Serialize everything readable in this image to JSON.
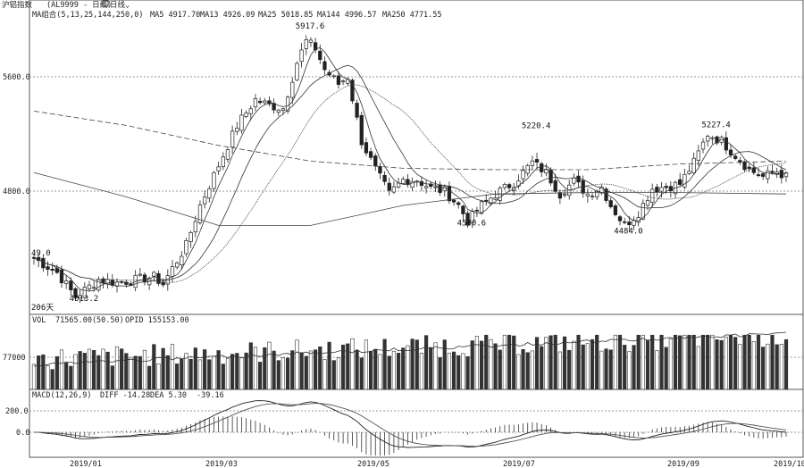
{
  "header": {
    "symbol_label": "沪铝指数",
    "code_label": "(AL9999 - 日线)",
    "period_menu": "日线",
    "ma_legend": "MA组合(5,13,25,144,250,0)",
    "ma_values": [
      "MA5 4917.70",
      "MA13 4926.09",
      "MA25 5018.85",
      "MA144 4996.57",
      "MA250 4771.55"
    ]
  },
  "volume_header": {
    "label": "VOL",
    "vol_text": "71565.00(50.50)",
    "opid_text": "OPID 155153.00"
  },
  "macd_header": {
    "label": "MACD(12,26,9)",
    "diff_text": "DIFF -14.28",
    "dea_text": "DEA 5.30",
    "macd_text": "-39.16"
  },
  "colors": {
    "up": "#222222",
    "down": "#222222",
    "grid": "#888888",
    "background": "#ffffff"
  },
  "chart_data": {
    "type": "candlestick",
    "price_axis": {
      "ticks": [
        4800.0,
        5600.0
      ],
      "tick_labels": [
        "4800.0",
        "5600.0"
      ],
      "range": [
        3760,
        6000
      ]
    },
    "volume_axis": {
      "ticks": [
        77000
      ],
      "tick_labels": [
        "77000"
      ],
      "range": [
        0,
        140000
      ]
    },
    "macd_axis": {
      "ticks": [
        200.0,
        0.0
      ],
      "tick_labels": [
        "200.0",
        "0.0"
      ],
      "range": [
        -150,
        280
      ]
    },
    "x_labels": [
      "2019/01",
      "2019/03",
      "2019/05",
      "2019/07",
      "2019/09",
      "2019/10"
    ],
    "annotations": [
      {
        "text": "5917.6",
        "price": 5917.6,
        "candle": 59
      },
      {
        "text": "5220.4",
        "price": 5220.4,
        "candle": 108
      },
      {
        "text": "5227.4",
        "price": 5227.4,
        "candle": 147
      },
      {
        "text": "4540.6",
        "price": 4540.6,
        "candle": 94
      },
      {
        "text": "4484.0",
        "price": 4484.0,
        "candle": 128
      },
      {
        "text": "4013.2",
        "price": 4013.2,
        "candle": 10
      },
      {
        "text": "49.0",
        "price": 4330,
        "candle": 0
      },
      {
        "text": "206天",
        "price": 3950,
        "candle": 0
      }
    ],
    "anchor_closes": [
      [
        0,
        4330
      ],
      [
        5,
        4230
      ],
      [
        9,
        4060
      ],
      [
        14,
        4180
      ],
      [
        18,
        4160
      ],
      [
        22,
        4180
      ],
      [
        26,
        4200
      ],
      [
        28,
        4150
      ],
      [
        30,
        4260
      ],
      [
        33,
        4420
      ],
      [
        36,
        4700
      ],
      [
        40,
        4980
      ],
      [
        44,
        5260
      ],
      [
        48,
        5440
      ],
      [
        51,
        5400
      ],
      [
        54,
        5380
      ],
      [
        57,
        5700
      ],
      [
        59,
        5850
      ],
      [
        61,
        5800
      ],
      [
        63,
        5650
      ],
      [
        66,
        5550
      ],
      [
        68,
        5600
      ],
      [
        71,
        5150
      ],
      [
        74,
        4950
      ],
      [
        77,
        4780
      ],
      [
        80,
        4880
      ],
      [
        83,
        4880
      ],
      [
        86,
        4820
      ],
      [
        89,
        4800
      ],
      [
        92,
        4700
      ],
      [
        94,
        4590
      ],
      [
        97,
        4700
      ],
      [
        100,
        4780
      ],
      [
        104,
        4860
      ],
      [
        108,
        5000
      ],
      [
        111,
        4930
      ],
      [
        114,
        4780
      ],
      [
        117,
        4870
      ],
      [
        120,
        4780
      ],
      [
        123,
        4830
      ],
      [
        125,
        4700
      ],
      [
        128,
        4560
      ],
      [
        131,
        4650
      ],
      [
        134,
        4820
      ],
      [
        137,
        4830
      ],
      [
        140,
        4850
      ],
      [
        143,
        5000
      ],
      [
        146,
        5200
      ],
      [
        149,
        5150
      ],
      [
        152,
        5050
      ],
      [
        155,
        4950
      ],
      [
        158,
        4900
      ],
      [
        161,
        4940
      ],
      [
        163,
        4900
      ]
    ],
    "ma_lines": {
      "MA144": [
        [
          0,
          5360
        ],
        [
          20,
          5260
        ],
        [
          40,
          5120
        ],
        [
          60,
          5010
        ],
        [
          80,
          4960
        ],
        [
          100,
          4950
        ],
        [
          120,
          4950
        ],
        [
          140,
          4990
        ],
        [
          163,
          5010
        ]
      ],
      "MA250": [
        [
          0,
          4930
        ],
        [
          20,
          4760
        ],
        [
          40,
          4560
        ],
        [
          60,
          4560
        ],
        [
          80,
          4700
        ],
        [
          100,
          4780
        ],
        [
          120,
          4790
        ],
        [
          140,
          4790
        ],
        [
          163,
          4780
        ]
      ]
    }
  }
}
